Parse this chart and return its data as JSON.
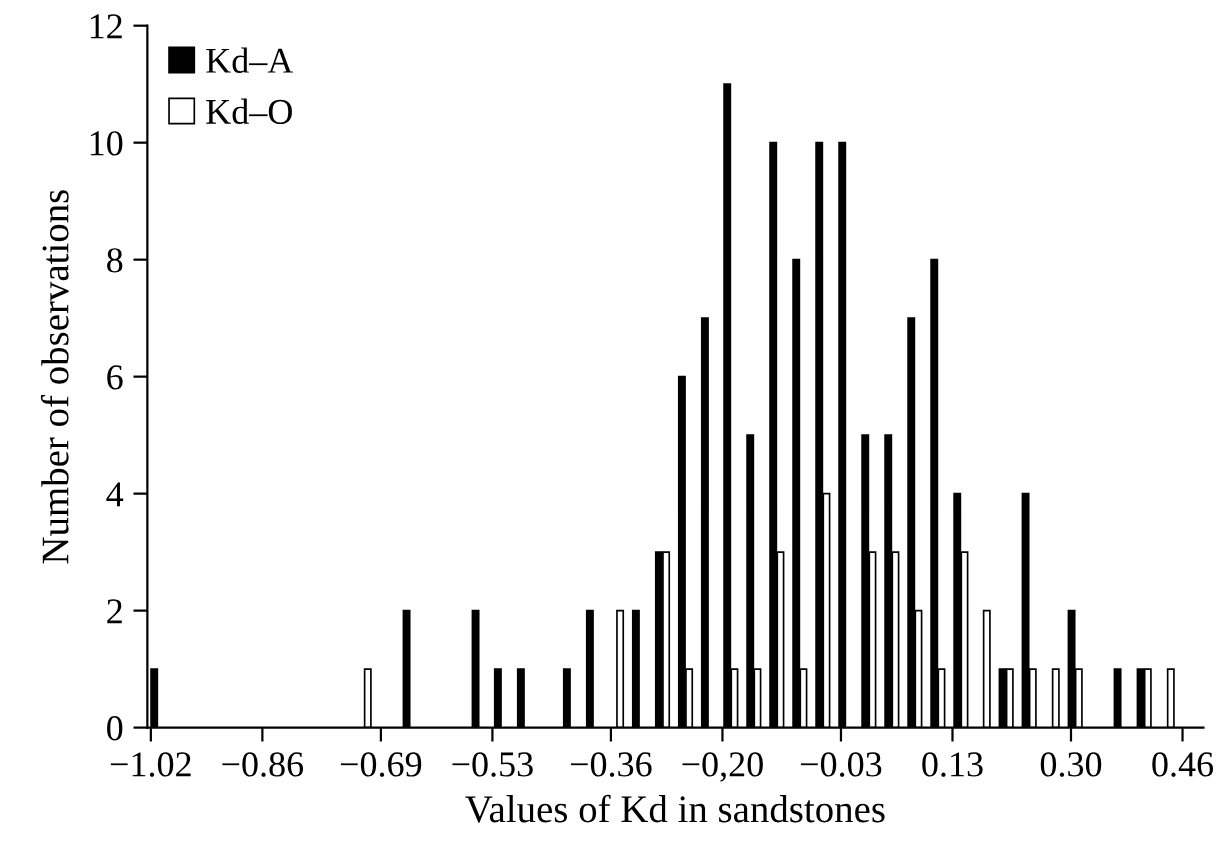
{
  "chart_data": {
    "type": "bar",
    "xlabel": "Values of Kd in sandstones",
    "ylabel": "Number of observations",
    "x": [
      -1.01,
      -0.977,
      -0.944,
      -0.911,
      -0.878,
      -0.846,
      -0.813,
      -0.78,
      -0.747,
      -0.714,
      -0.681,
      -0.648,
      -0.615,
      -0.582,
      -0.549,
      -0.517,
      -0.484,
      -0.451,
      -0.418,
      -0.385,
      -0.352,
      -0.319,
      -0.286,
      -0.253,
      -0.22,
      -0.188,
      -0.155,
      -0.122,
      -0.089,
      -0.056,
      -0.023,
      0.01,
      0.043,
      0.076,
      0.109,
      0.142,
      0.174,
      0.207,
      0.24,
      0.273,
      0.306,
      0.339,
      0.372,
      0.405,
      0.438
    ],
    "series": [
      {
        "name": "Kd–A",
        "color": "#000000",
        "values": [
          1,
          null,
          null,
          null,
          null,
          null,
          null,
          null,
          null,
          null,
          null,
          2,
          null,
          null,
          2,
          1,
          1,
          null,
          1,
          2,
          null,
          2,
          3,
          6,
          7,
          11,
          5,
          10,
          8,
          10,
          10,
          5,
          5,
          7,
          8,
          4,
          null,
          1,
          4,
          null,
          2,
          null,
          1,
          1,
          null
        ]
      },
      {
        "name": "Kd–O",
        "color": "#ffffff",
        "values": [
          null,
          null,
          null,
          null,
          null,
          null,
          null,
          null,
          null,
          1,
          null,
          null,
          null,
          null,
          null,
          null,
          null,
          null,
          null,
          null,
          2,
          null,
          3,
          1,
          null,
          1,
          1,
          3,
          1,
          4,
          null,
          3,
          3,
          2,
          1,
          3,
          2,
          1,
          1,
          1,
          1,
          null,
          null,
          1,
          1
        ]
      }
    ],
    "xlim": [
      -1.025,
      0.49
    ],
    "ylim": [
      0,
      12
    ],
    "xticks": [
      -1.02,
      -0.86,
      -0.69,
      -0.53,
      -0.36,
      {
        "value": -0.2,
        "label": "−0,20"
      },
      -0.03,
      0.13,
      {
        "value": 0.3,
        "label": "0.30"
      },
      0.46
    ],
    "yticks": [
      0,
      2,
      4,
      6,
      8,
      10,
      12
    ],
    "grid": false,
    "legend": "top left"
  }
}
